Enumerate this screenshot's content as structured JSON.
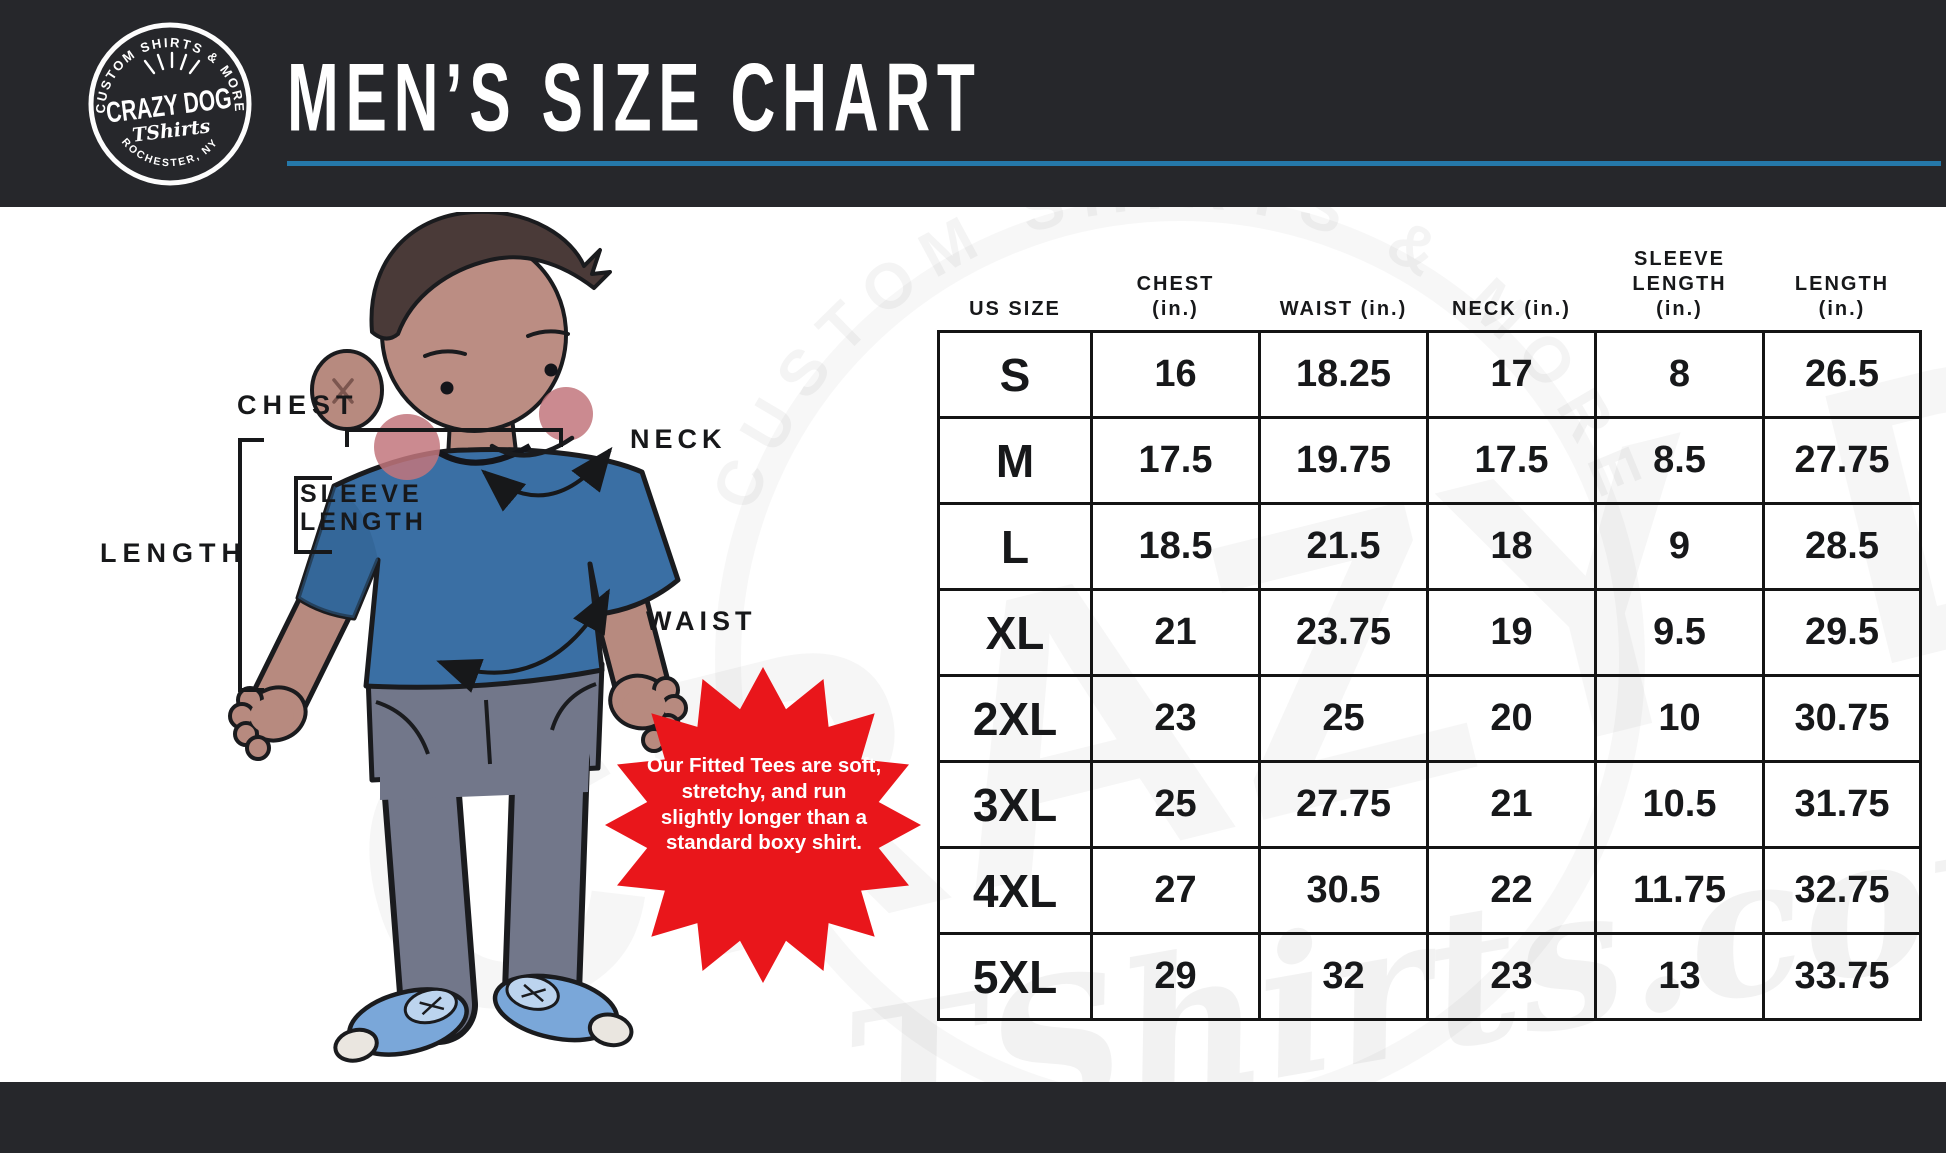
{
  "chart_data": {
    "type": "table",
    "title": "MEN’S SIZE CHART",
    "columns": [
      "US SIZE",
      "CHEST (in.)",
      "WAIST (in.)",
      "NECK (in.)",
      "SLEEVE LENGTH (in.)",
      "LENGTH (in.)"
    ],
    "rows": [
      [
        "S",
        16,
        18.25,
        17,
        8,
        26.5
      ],
      [
        "M",
        17.5,
        19.75,
        17.5,
        8.5,
        27.75
      ],
      [
        "L",
        18.5,
        21.5,
        18,
        9,
        28.5
      ],
      [
        "XL",
        21,
        23.75,
        19,
        9.5,
        29.5
      ],
      [
        "2XL",
        23,
        25,
        20,
        10,
        30.75
      ],
      [
        "3XL",
        25,
        27.75,
        21,
        10.5,
        31.75
      ],
      [
        "4XL",
        27,
        30.5,
        22,
        11.75,
        32.75
      ],
      [
        "5XL",
        29,
        32,
        23,
        13,
        33.75
      ]
    ]
  },
  "header": {
    "title": "MEN’S SIZE CHART",
    "logo": {
      "arc_top": "CUSTOM SHIRTS & MORE",
      "name": "CRAZY DOG",
      "script": "TShirts",
      "arc_bottom": "ROCHESTER, NY"
    }
  },
  "illustration": {
    "labels": {
      "chest": "CHEST",
      "neck": "NECK",
      "sleeve_line1": "SLEEVE",
      "sleeve_line2": "LENGTH",
      "length": "LENGTH",
      "waist": "WAIST"
    }
  },
  "badge": {
    "text": "Our Fitted Tees are soft, stretchy, and run slightly longer than a standard boxy shirt."
  },
  "size_table": {
    "columns": [
      "US SIZE",
      "CHEST\n(in.)",
      "WAIST (in.)",
      "NECK (in.)",
      "SLEEVE\nLENGTH\n(in.)",
      "LENGTH\n(in.)"
    ],
    "rows": [
      {
        "size": "S",
        "values": [
          "16",
          "18.25",
          "17",
          "8",
          "26.5"
        ]
      },
      {
        "size": "M",
        "values": [
          "17.5",
          "19.75",
          "17.5",
          "8.5",
          "27.75"
        ]
      },
      {
        "size": "L",
        "values": [
          "18.5",
          "21.5",
          "18",
          "9",
          "28.5"
        ]
      },
      {
        "size": "XL",
        "values": [
          "21",
          "23.75",
          "19",
          "9.5",
          "29.5"
        ]
      },
      {
        "size": "2XL",
        "values": [
          "23",
          "25",
          "20",
          "10",
          "30.75"
        ]
      },
      {
        "size": "3XL",
        "values": [
          "25",
          "27.75",
          "21",
          "10.5",
          "31.75"
        ]
      },
      {
        "size": "4XL",
        "values": [
          "27",
          "30.5",
          "22",
          "11.75",
          "32.75"
        ]
      },
      {
        "size": "5XL",
        "values": [
          "29",
          "32",
          "23",
          "13",
          "33.75"
        ]
      }
    ]
  },
  "watermark": {
    "arc_text": "CUSTOM SHIRTS & MORE",
    "big_text": "CRAZY DOG",
    "script_text": "TShirts.com"
  },
  "colors": {
    "accent_blue": "#2578a9",
    "badge_red": "#e9161b",
    "bar_dark": "#26272b",
    "shirt_blue": "#3a6fa4",
    "pants_gray": "#72778a",
    "shoe_blue": "#7aa7d9"
  }
}
